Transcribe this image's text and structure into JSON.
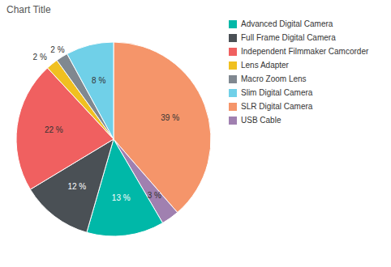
{
  "chart_data": {
    "type": "pie",
    "title": "Chart Title",
    "categories": [
      "SLR Digital Camera",
      "USB Cable",
      "Advanced Digital Camera",
      "Full Frame Digital Camera",
      "Independent Filmmaker Camcorder",
      "Lens Adapter",
      "Macro Zoom Lens",
      "Slim Digital Camera"
    ],
    "values": [
      39,
      3,
      13,
      12,
      22,
      2,
      2,
      8
    ],
    "value_labels": [
      "39 %",
      "3 %",
      "13 %",
      "12 %",
      "22 %",
      "2 %",
      "2 %",
      "8 %"
    ],
    "colors": [
      "#F5956A",
      "#A080B0",
      "#00B8A8",
      "#4A5055",
      "#F06060",
      "#F0C020",
      "#808890",
      "#70D0E8"
    ],
    "legend_order": [
      "Advanced Digital Camera",
      "Full Frame Digital Camera",
      "Independent Filmmaker Camcorder",
      "Lens Adapter",
      "Macro Zoom Lens",
      "Slim Digital Camera",
      "SLR Digital Camera",
      "USB Cable"
    ],
    "legend": "right",
    "data_labels": true
  }
}
